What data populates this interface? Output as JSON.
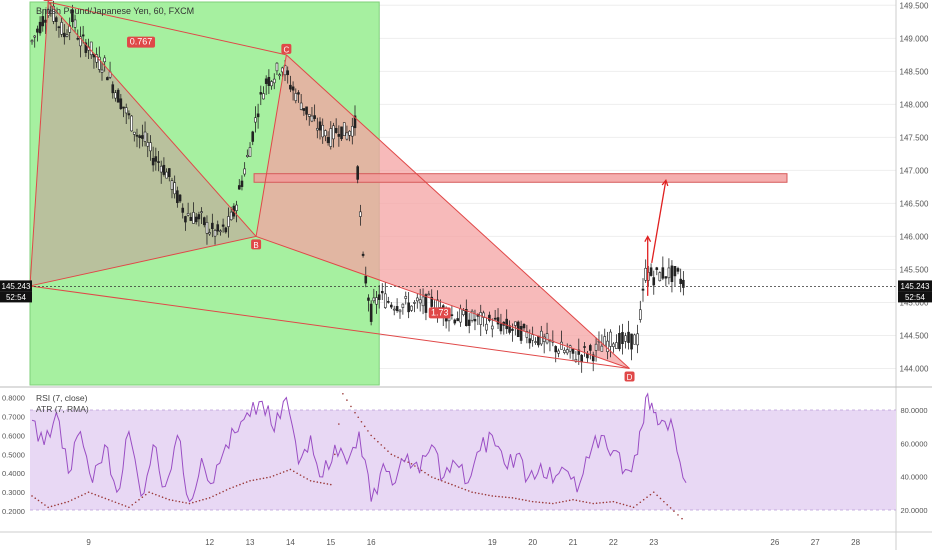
{
  "header": {
    "symbol_label": "British Pound/Japanese Yen, 60, FXCM"
  },
  "price_axis": {
    "ticks": [
      "149.500",
      "149.000",
      "148.500",
      "148.000",
      "147.500",
      "147.000",
      "146.500",
      "146.000",
      "145.500",
      "145.000",
      "144.500",
      "144.000"
    ],
    "ylim": [
      143.75,
      149.55
    ],
    "current_price_left": "145.243",
    "current_price_right": "145.243",
    "countdown_left": "52:54",
    "countdown_right": "52:54"
  },
  "date_axis": {
    "labels": [
      {
        "label": "9",
        "x": 9
      },
      {
        "label": "12",
        "x": 12
      },
      {
        "label": "13",
        "x": 13
      },
      {
        "label": "14",
        "x": 14
      },
      {
        "label": "15",
        "x": 15
      },
      {
        "label": "16",
        "x": 16
      },
      {
        "label": "19",
        "x": 19
      },
      {
        "label": "20",
        "x": 20
      },
      {
        "label": "21",
        "x": 21
      },
      {
        "label": "22",
        "x": 22
      },
      {
        "label": "23",
        "x": 23
      },
      {
        "label": "26",
        "x": 26
      },
      {
        "label": "27",
        "x": 27
      },
      {
        "label": "28",
        "x": 28
      }
    ],
    "xlim": [
      7.55,
      29.0
    ]
  },
  "colors": {
    "green_zone": "#a6f0a0",
    "pattern_fill": "#f4a3a3",
    "pattern_line": "#e04848",
    "target_fill": "#f29a9a",
    "candle": "#222222",
    "rsi_line": "#9a4ec4",
    "atr_dots": "#9b3a3a",
    "rsi_band": "#e8d8f4",
    "price_tag": "#111111"
  },
  "pattern": {
    "points": [
      {
        "label": "A",
        "x": 8.0,
        "y": 149.55
      },
      {
        "label": "B",
        "x": 13.15,
        "y": 146.0
      },
      {
        "label": "C",
        "x": 13.9,
        "y": 148.75
      },
      {
        "label": "D",
        "x": 22.4,
        "y": 144.0
      }
    ],
    "start_left": {
      "x": 7.55,
      "y": 145.25
    },
    "ratio_xb": "0.767",
    "ratio_bd": "1.73",
    "green_zone": {
      "x1": 7.55,
      "x2": 16.2,
      "y1": 143.75,
      "y2": 149.55
    }
  },
  "target_zone": {
    "x1": 13.1,
    "x2": 26.3,
    "y1": 146.82,
    "y2": 146.95
  },
  "arrows": [
    {
      "x1": 22.85,
      "y1": 145.1,
      "x2": 22.85,
      "y2": 146.0
    },
    {
      "x1": 22.95,
      "y1": 145.6,
      "x2": 23.3,
      "y2": 146.85
    }
  ],
  "indicators": {
    "rsi_label": "RSI (7, close)",
    "atr_label": "ATR (7, RMA)",
    "left_ticks": [
      "0.8000",
      "0.7000",
      "0.6000",
      "0.5000",
      "0.4000",
      "0.3000",
      "0.2000"
    ],
    "left_ylim": [
      0.1,
      0.84
    ],
    "right_ticks": [
      "80.0000",
      "60.0000",
      "40.0000",
      "20.0000"
    ],
    "right_ylim": [
      8,
      92
    ],
    "band": [
      20,
      80
    ]
  },
  "chart_data": [
    {
      "type": "line",
      "title": "British Pound/Japanese Yen, 60, FXCM",
      "ylim": [
        143.75,
        149.55
      ],
      "series": [
        {
          "values": [
            {
              "x": 7.6,
              "y": 148.95
            },
            {
              "x": 7.8,
              "y": 149.2
            },
            {
              "x": 8.0,
              "y": 149.45
            },
            {
              "x": 8.2,
              "y": 149.3
            },
            {
              "x": 8.4,
              "y": 149.05
            },
            {
              "x": 8.6,
              "y": 149.3
            },
            {
              "x": 8.8,
              "y": 148.95
            },
            {
              "x": 9.0,
              "y": 148.9
            },
            {
              "x": 9.2,
              "y": 148.65
            },
            {
              "x": 9.4,
              "y": 148.6
            },
            {
              "x": 9.6,
              "y": 148.3
            },
            {
              "x": 9.8,
              "y": 148.05
            },
            {
              "x": 10.0,
              "y": 147.8
            },
            {
              "x": 10.2,
              "y": 147.55
            },
            {
              "x": 10.4,
              "y": 147.45
            },
            {
              "x": 10.6,
              "y": 147.2
            },
            {
              "x": 10.8,
              "y": 147.1
            },
            {
              "x": 11.0,
              "y": 146.9
            },
            {
              "x": 11.2,
              "y": 146.6
            },
            {
              "x": 11.4,
              "y": 146.35
            },
            {
              "x": 11.6,
              "y": 146.3
            },
            {
              "x": 11.8,
              "y": 146.25
            },
            {
              "x": 12.0,
              "y": 146.1
            },
            {
              "x": 12.2,
              "y": 146.05
            },
            {
              "x": 12.4,
              "y": 146.1
            },
            {
              "x": 12.6,
              "y": 146.35
            },
            {
              "x": 12.8,
              "y": 146.85
            },
            {
              "x": 13.0,
              "y": 147.35
            },
            {
              "x": 13.2,
              "y": 147.95
            },
            {
              "x": 13.4,
              "y": 148.35
            },
            {
              "x": 13.6,
              "y": 148.45
            },
            {
              "x": 13.8,
              "y": 148.6
            },
            {
              "x": 14.0,
              "y": 148.3
            },
            {
              "x": 14.2,
              "y": 148.1
            },
            {
              "x": 14.4,
              "y": 147.9
            },
            {
              "x": 14.6,
              "y": 147.7
            },
            {
              "x": 14.8,
              "y": 147.6
            },
            {
              "x": 15.0,
              "y": 147.5
            },
            {
              "x": 15.2,
              "y": 147.65
            },
            {
              "x": 15.4,
              "y": 147.55
            },
            {
              "x": 15.6,
              "y": 147.7
            },
            {
              "x": 15.8,
              "y": 145.6
            },
            {
              "x": 16.0,
              "y": 144.85
            },
            {
              "x": 16.2,
              "y": 145.1
            },
            {
              "x": 16.5,
              "y": 145.0
            },
            {
              "x": 17.0,
              "y": 144.95
            },
            {
              "x": 17.5,
              "y": 145.0
            },
            {
              "x": 18.0,
              "y": 144.8
            },
            {
              "x": 18.5,
              "y": 144.75
            },
            {
              "x": 19.0,
              "y": 144.7
            },
            {
              "x": 19.5,
              "y": 144.6
            },
            {
              "x": 20.0,
              "y": 144.5
            },
            {
              "x": 20.5,
              "y": 144.35
            },
            {
              "x": 21.0,
              "y": 144.2
            },
            {
              "x": 21.5,
              "y": 144.25
            },
            {
              "x": 22.0,
              "y": 144.45
            },
            {
              "x": 22.3,
              "y": 144.4
            },
            {
              "x": 22.6,
              "y": 144.45
            },
            {
              "x": 22.8,
              "y": 145.45
            },
            {
              "x": 23.0,
              "y": 145.4
            },
            {
              "x": 23.3,
              "y": 145.45
            },
            {
              "x": 23.6,
              "y": 145.4
            },
            {
              "x": 23.8,
              "y": 145.25
            }
          ]
        }
      ]
    },
    {
      "type": "line",
      "ylim": [
        0.1,
        0.84
      ],
      "series": [
        {
          "name": "RSI (7, close)",
          "values": [
            {
              "x": 7.6,
              "y": 0.68
            },
            {
              "x": 7.9,
              "y": 0.55
            },
            {
              "x": 8.2,
              "y": 0.72
            },
            {
              "x": 8.5,
              "y": 0.4
            },
            {
              "x": 8.8,
              "y": 0.62
            },
            {
              "x": 9.1,
              "y": 0.35
            },
            {
              "x": 9.4,
              "y": 0.55
            },
            {
              "x": 9.7,
              "y": 0.3
            },
            {
              "x": 10.0,
              "y": 0.62
            },
            {
              "x": 10.3,
              "y": 0.28
            },
            {
              "x": 10.6,
              "y": 0.55
            },
            {
              "x": 10.9,
              "y": 0.33
            },
            {
              "x": 11.2,
              "y": 0.6
            },
            {
              "x": 11.5,
              "y": 0.25
            },
            {
              "x": 11.8,
              "y": 0.48
            },
            {
              "x": 12.1,
              "y": 0.35
            },
            {
              "x": 12.4,
              "y": 0.55
            },
            {
              "x": 12.7,
              "y": 0.62
            },
            {
              "x": 13.0,
              "y": 0.7
            },
            {
              "x": 13.3,
              "y": 0.78
            },
            {
              "x": 13.6,
              "y": 0.62
            },
            {
              "x": 13.9,
              "y": 0.8
            },
            {
              "x": 14.2,
              "y": 0.45
            },
            {
              "x": 14.5,
              "y": 0.6
            },
            {
              "x": 14.8,
              "y": 0.38
            },
            {
              "x": 15.1,
              "y": 0.55
            },
            {
              "x": 15.4,
              "y": 0.45
            },
            {
              "x": 15.7,
              "y": 0.62
            },
            {
              "x": 16.0,
              "y": 0.25
            },
            {
              "x": 16.3,
              "y": 0.45
            },
            {
              "x": 16.6,
              "y": 0.35
            },
            {
              "x": 16.9,
              "y": 0.5
            },
            {
              "x": 17.2,
              "y": 0.4
            },
            {
              "x": 17.5,
              "y": 0.55
            },
            {
              "x": 17.8,
              "y": 0.38
            },
            {
              "x": 18.1,
              "y": 0.45
            },
            {
              "x": 18.4,
              "y": 0.35
            },
            {
              "x": 18.7,
              "y": 0.52
            },
            {
              "x": 19.0,
              "y": 0.6
            },
            {
              "x": 19.3,
              "y": 0.45
            },
            {
              "x": 19.6,
              "y": 0.5
            },
            {
              "x": 19.9,
              "y": 0.38
            },
            {
              "x": 20.2,
              "y": 0.45
            },
            {
              "x": 20.5,
              "y": 0.35
            },
            {
              "x": 20.8,
              "y": 0.42
            },
            {
              "x": 21.1,
              "y": 0.3
            },
            {
              "x": 21.4,
              "y": 0.48
            },
            {
              "x": 21.7,
              "y": 0.6
            },
            {
              "x": 22.0,
              "y": 0.52
            },
            {
              "x": 22.3,
              "y": 0.42
            },
            {
              "x": 22.6,
              "y": 0.5
            },
            {
              "x": 22.8,
              "y": 0.8
            },
            {
              "x": 23.0,
              "y": 0.72
            },
            {
              "x": 23.2,
              "y": 0.68
            },
            {
              "x": 23.5,
              "y": 0.62
            },
            {
              "x": 23.8,
              "y": 0.35
            }
          ]
        },
        {
          "name": "ATR (7, RMA)",
          "values": [
            {
              "x": 7.6,
              "y": 0.28
            },
            {
              "x": 8.0,
              "y": 0.22
            },
            {
              "x": 8.5,
              "y": 0.25
            },
            {
              "x": 9.0,
              "y": 0.3
            },
            {
              "x": 9.5,
              "y": 0.26
            },
            {
              "x": 10.0,
              "y": 0.22
            },
            {
              "x": 10.5,
              "y": 0.3
            },
            {
              "x": 11.0,
              "y": 0.26
            },
            {
              "x": 11.5,
              "y": 0.24
            },
            {
              "x": 12.0,
              "y": 0.27
            },
            {
              "x": 12.5,
              "y": 0.32
            },
            {
              "x": 13.0,
              "y": 0.36
            },
            {
              "x": 13.5,
              "y": 0.38
            },
            {
              "x": 14.0,
              "y": 0.42
            },
            {
              "x": 14.5,
              "y": 0.36
            },
            {
              "x": 15.0,
              "y": 0.34
            },
            {
              "x": 15.3,
              "y": 0.82
            },
            {
              "x": 15.6,
              "y": 0.72
            },
            {
              "x": 16.0,
              "y": 0.6
            },
            {
              "x": 16.5,
              "y": 0.5
            },
            {
              "x": 17.0,
              "y": 0.45
            },
            {
              "x": 17.5,
              "y": 0.38
            },
            {
              "x": 18.0,
              "y": 0.34
            },
            {
              "x": 18.5,
              "y": 0.3
            },
            {
              "x": 19.0,
              "y": 0.28
            },
            {
              "x": 19.5,
              "y": 0.27
            },
            {
              "x": 20.0,
              "y": 0.25
            },
            {
              "x": 20.5,
              "y": 0.24
            },
            {
              "x": 21.0,
              "y": 0.26
            },
            {
              "x": 21.5,
              "y": 0.24
            },
            {
              "x": 22.0,
              "y": 0.25
            },
            {
              "x": 22.5,
              "y": 0.22
            },
            {
              "x": 23.0,
              "y": 0.3
            },
            {
              "x": 23.5,
              "y": 0.2
            },
            {
              "x": 23.8,
              "y": 0.14
            }
          ]
        }
      ]
    }
  ]
}
